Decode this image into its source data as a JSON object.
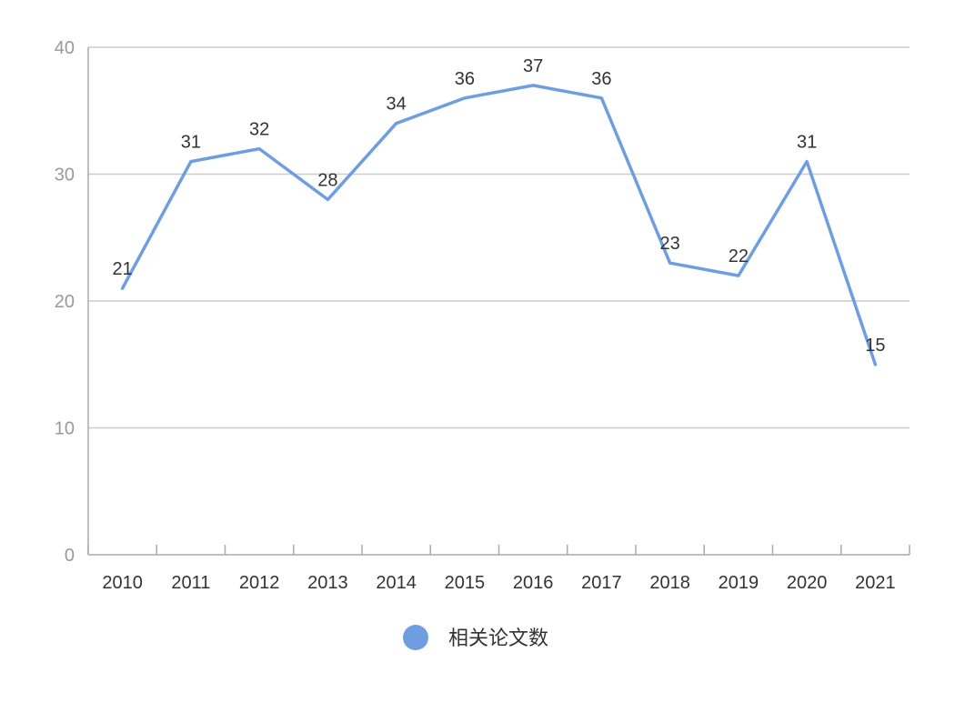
{
  "chart_data": {
    "type": "line",
    "categories": [
      "2010",
      "2011",
      "2012",
      "2013",
      "2014",
      "2015",
      "2016",
      "2017",
      "2018",
      "2019",
      "2020",
      "2021"
    ],
    "series": [
      {
        "name": "相关论文数",
        "values": [
          21,
          31,
          32,
          28,
          34,
          36,
          37,
          36,
          23,
          22,
          31,
          15
        ]
      }
    ],
    "yticks": [
      "0",
      "10",
      "20",
      "30",
      "40"
    ],
    "ylim": [
      0,
      40
    ],
    "grid": true,
    "legend": "bottom-center",
    "title": "",
    "xlabel": "",
    "ylabel": "",
    "colors": {
      "line": "#6f9ee0",
      "legend_marker": "#6f9ee0",
      "grid": "#cccccc",
      "axis": "#aaaaaa"
    }
  }
}
